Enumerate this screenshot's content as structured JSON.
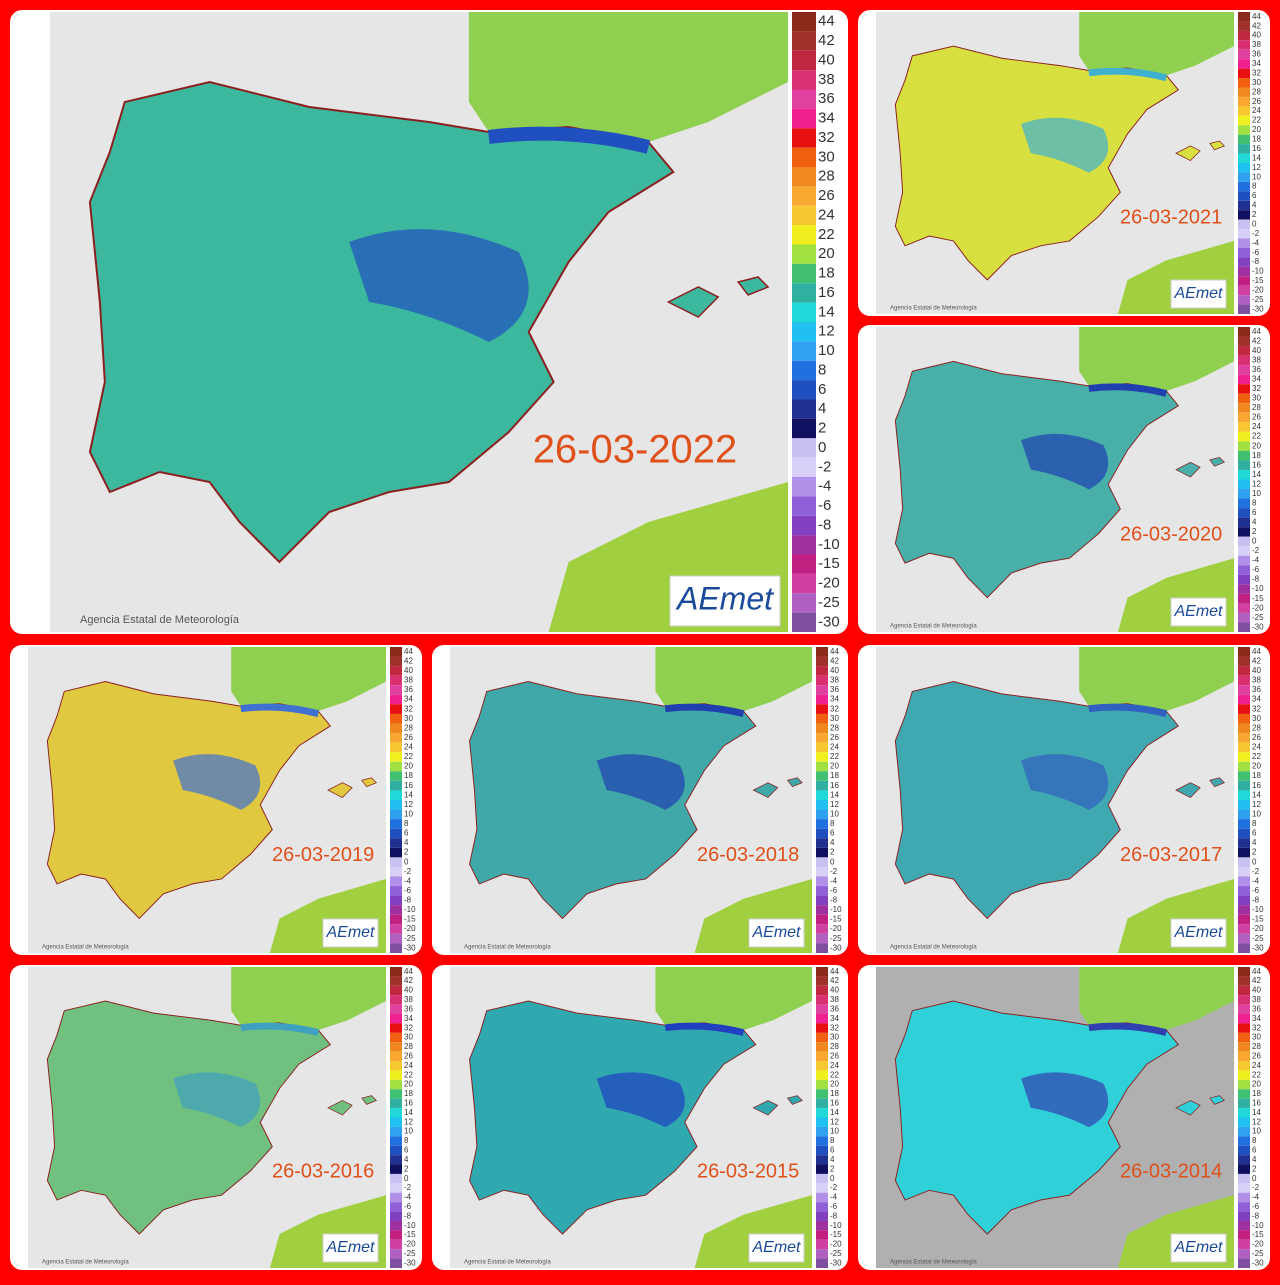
{
  "panels": [
    {
      "date": "26-03-2022"
    },
    {
      "date": "26-03-2021"
    },
    {
      "date": "26-03-2020"
    },
    {
      "date": "26-03-2019"
    },
    {
      "date": "26-03-2018"
    },
    {
      "date": "26-03-2017"
    },
    {
      "date": "26-03-2016"
    },
    {
      "date": "26-03-2015"
    },
    {
      "date": "26-03-2014"
    }
  ],
  "legend": {
    "ticks": [
      44,
      42,
      40,
      38,
      36,
      34,
      32,
      30,
      28,
      26,
      24,
      22,
      20,
      18,
      16,
      14,
      12,
      10,
      8,
      6,
      4,
      2,
      0,
      -2,
      -4,
      -6,
      -8,
      -10,
      -15,
      -20,
      -25,
      -30
    ],
    "colors": [
      "#8b2a1a",
      "#a0302a",
      "#c02840",
      "#d83070",
      "#e040a0",
      "#f02090",
      "#e81010",
      "#f06010",
      "#f08820",
      "#f8a830",
      "#f8c830",
      "#f0f020",
      "#a0e040",
      "#40c070",
      "#30b0a0",
      "#20d8d8",
      "#20c0f0",
      "#30a0f0",
      "#2070e0",
      "#2050c0",
      "#203090",
      "#101060",
      "#c8c0f0",
      "#d8d0f8",
      "#b090e8",
      "#9060d8",
      "#8040c0",
      "#a030a0",
      "#c02080",
      "#d040a0",
      "#b060c0",
      "#8050a0"
    ]
  },
  "credit": "Agencia Estatal de Meteorología",
  "logo": "AEmet"
}
